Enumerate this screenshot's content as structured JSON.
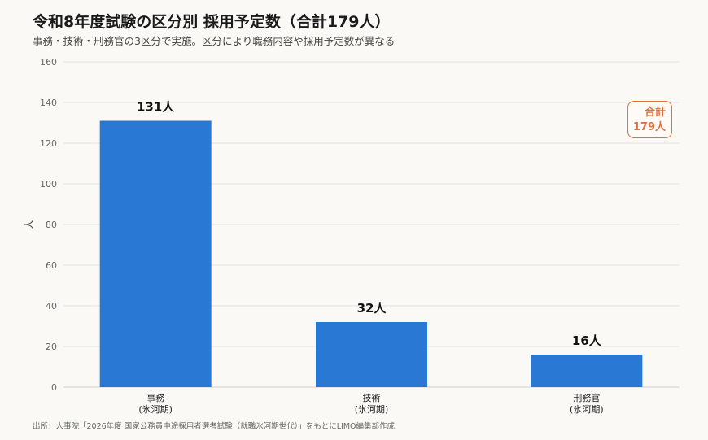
{
  "title": "令和8年度試験の区分別 採用予定数（合計179人）",
  "subtitle": "事務・技術・刑務官の3区分で実施。区分により職務内容や採用予定数が異なる",
  "source": "出所：人事院「2026年度 国家公務員中途採用者選考試験（就職氷河期世代）」をもとにLIMO編集部作成",
  "total_badge": {
    "line1": "合計",
    "line2": "179人"
  },
  "colors": {
    "bar": "#2878d4",
    "badge": "#e0703f",
    "grid": "#e2e2de",
    "background": "#faf9f5"
  },
  "chart_data": {
    "type": "bar",
    "categories": [
      [
        "事務",
        "(氷河期)"
      ],
      [
        "技術",
        "(氷河期)"
      ],
      [
        "刑務官",
        "(氷河期)"
      ]
    ],
    "values": [
      131,
      32,
      16
    ],
    "data_labels": [
      "131人",
      "32人",
      "16人"
    ],
    "ylabel": "人",
    "ylim": [
      0,
      160
    ],
    "yticks": [
      0,
      20,
      40,
      60,
      80,
      100,
      120,
      140,
      160
    ],
    "grid": true,
    "legend": "none"
  }
}
